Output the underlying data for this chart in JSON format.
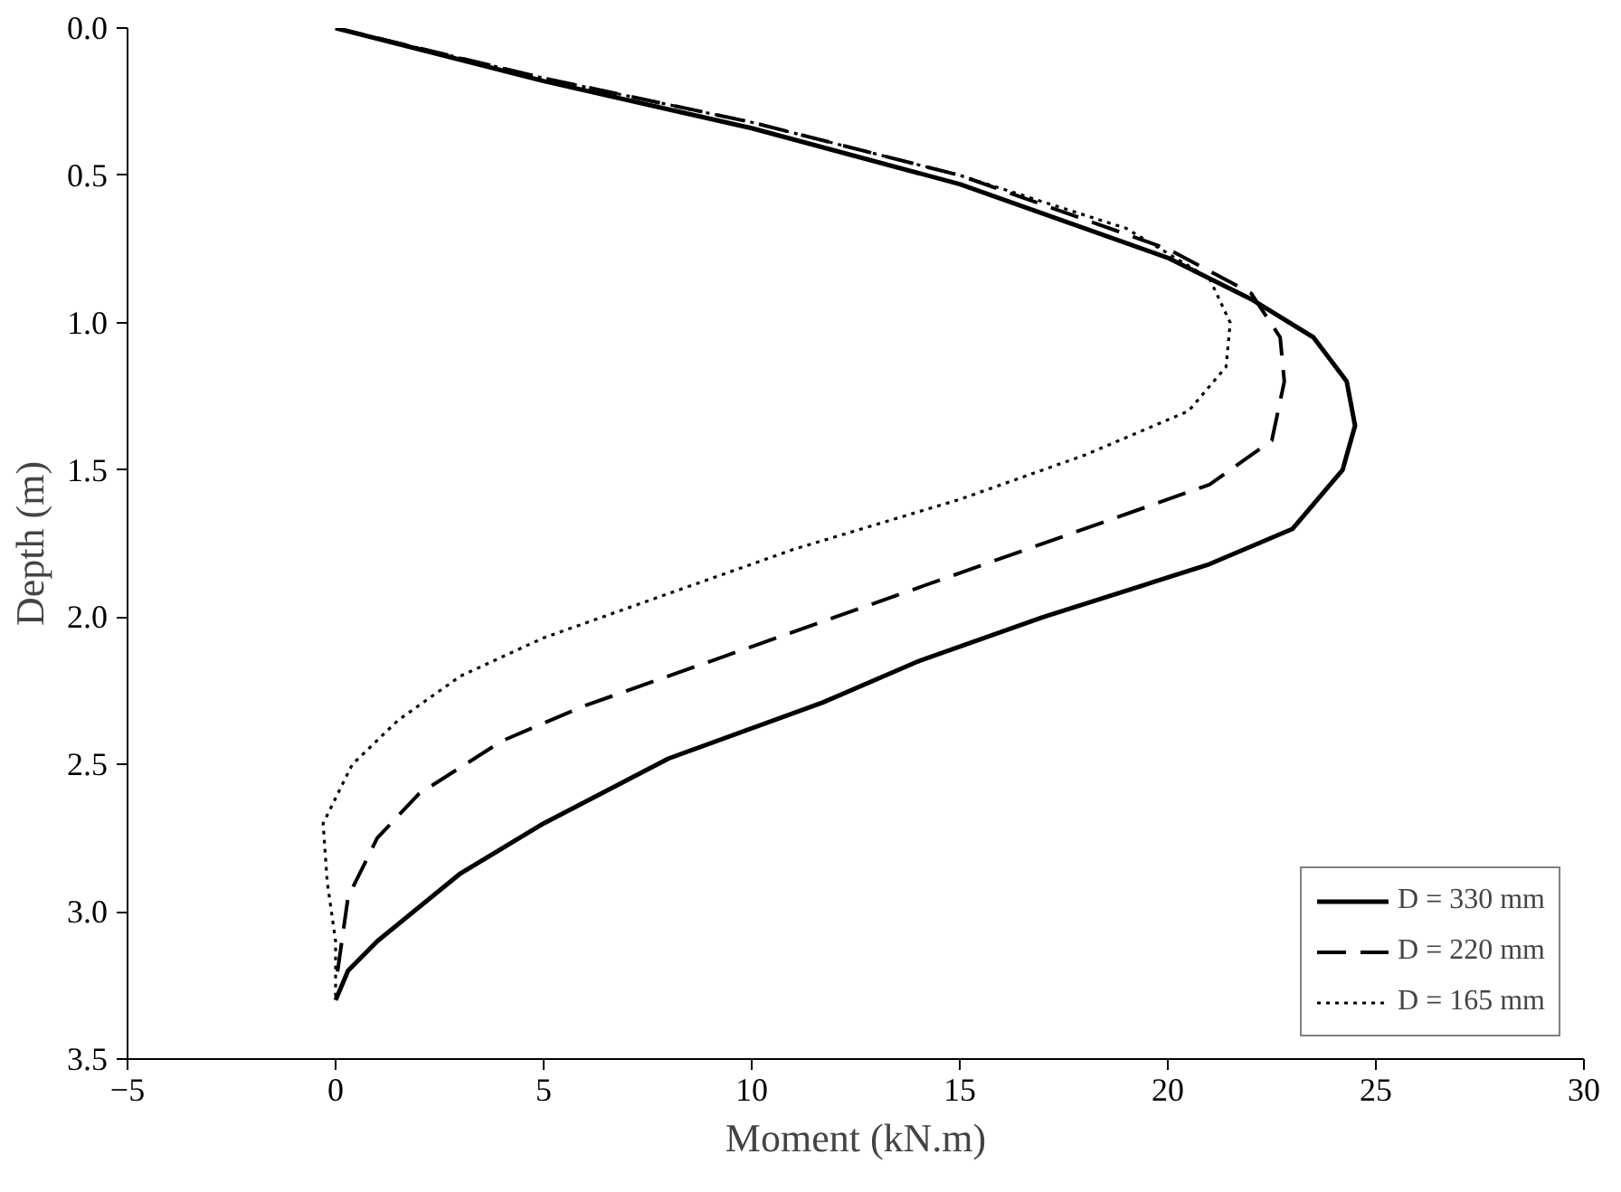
{
  "chart_data": {
    "type": "line",
    "xlabel": "Moment (kN.m)",
    "ylabel": "Depth (m)",
    "xlim": [
      -5,
      30
    ],
    "xticks": [
      -5,
      0,
      5,
      10,
      15,
      20,
      25,
      30
    ],
    "ylim": [
      3.5,
      0
    ],
    "yticks": [
      {
        "value": 0,
        "label": "0.0"
      },
      {
        "value": 0.5,
        "label": "0.5"
      },
      {
        "value": 1,
        "label": "1.0"
      },
      {
        "value": 1.5,
        "label": "1.5"
      },
      {
        "value": 2,
        "label": "2.0"
      },
      {
        "value": 2.5,
        "label": "2.5"
      },
      {
        "value": 3,
        "label": "3.0"
      },
      {
        "value": 3.5,
        "label": "3.5"
      }
    ],
    "grid": false,
    "legend": "bottom right",
    "marker": "none",
    "series": [
      {
        "name": "D = 330 mm",
        "color": "#000000",
        "line_style": "solid",
        "x": [
          0,
          5,
          10,
          15,
          20,
          22,
          23.5,
          24.3,
          24.5,
          24.2,
          23,
          21,
          17,
          14,
          11.7,
          8,
          5,
          3,
          1,
          0.3,
          0
        ],
        "values": [
          0,
          0.18,
          0.34,
          0.53,
          0.78,
          0.92,
          1.05,
          1.2,
          1.35,
          1.5,
          1.7,
          1.82,
          2.0,
          2.15,
          2.29,
          2.48,
          2.7,
          2.87,
          3.1,
          3.2,
          3.3
        ]
      },
      {
        "name": "D = 220 mm",
        "color": "#000000",
        "line_style": "dashed",
        "x": [
          0,
          5,
          10,
          15,
          20,
          22,
          22.7,
          22.8,
          22.5,
          21,
          18,
          15,
          12,
          9,
          6,
          4,
          2,
          1,
          0.3,
          0
        ],
        "values": [
          0,
          0.17,
          0.32,
          0.5,
          0.75,
          0.9,
          1.05,
          1.2,
          1.4,
          1.55,
          1.7,
          1.85,
          2.0,
          2.15,
          2.3,
          2.42,
          2.6,
          2.75,
          2.95,
          3.25
        ]
      },
      {
        "name": "D = 165 mm",
        "color": "#000000",
        "line_style": "dotted",
        "x": [
          0,
          5,
          10,
          15,
          19,
          21,
          21.5,
          21.4,
          20.5,
          18,
          15,
          11,
          8,
          5,
          3,
          1.5,
          0.4,
          -0.3,
          -0.2,
          0,
          0
        ],
        "values": [
          0,
          0.17,
          0.32,
          0.5,
          0.68,
          0.85,
          1.0,
          1.15,
          1.3,
          1.45,
          1.6,
          1.77,
          1.92,
          2.07,
          2.2,
          2.35,
          2.5,
          2.7,
          2.9,
          3.1,
          3.3
        ]
      }
    ]
  }
}
